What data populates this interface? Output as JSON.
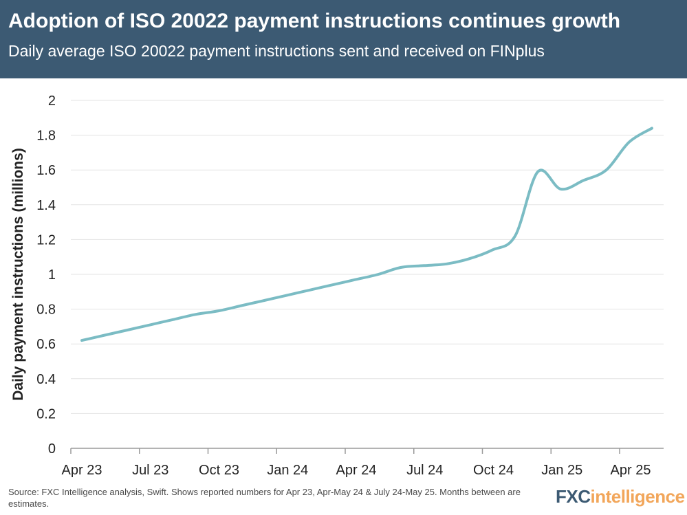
{
  "header": {
    "title": "Adoption of ISO 20022 payment instructions continues growth",
    "subtitle": "Daily average ISO 20022 payment instructions sent and received on FINplus"
  },
  "footer": {
    "source": "Source: FXC Intelligence analysis, Swift. Shows reported numbers for Apr 23, Apr-May 24 & July 24-May 25. Months between are estimates."
  },
  "logo": {
    "part1": "FXC",
    "part2": "intelligence"
  },
  "colors": {
    "header_bg": "#3c5a73",
    "line": "#7bbcc4",
    "grid": "#e3e3e3",
    "logo_accent": "#f2a65a"
  },
  "chart_data": {
    "type": "line",
    "title": "Adoption of ISO 20022 payment instructions continues growth",
    "subtitle": "Daily average ISO 20022 payment instructions sent and received on FINplus",
    "ylabel": "Daily payment instructions (millions)",
    "ylim": [
      0,
      2
    ],
    "yticks": [
      "0",
      "0.2",
      "0.4",
      "0.6",
      "0.8",
      "1",
      "1.2",
      "1.4",
      "1.6",
      "1.8",
      "2"
    ],
    "xtick_labels": [
      "Apr 23",
      "Jul 23",
      "Oct 23",
      "Jan 24",
      "Apr 24",
      "Jul 24",
      "Oct 24",
      "Jan 25",
      "Apr 25"
    ],
    "grid": true,
    "x": [
      "Apr 23",
      "May 23",
      "Jun 23",
      "Jul 23",
      "Aug 23",
      "Sep 23",
      "Oct 23",
      "Nov 23",
      "Dec 23",
      "Jan 24",
      "Feb 24",
      "Mar 24",
      "Apr 24",
      "May 24",
      "Jun 24",
      "Jul 24",
      "Aug 24",
      "Sep 24",
      "Oct 24",
      "Nov 24",
      "Dec 24",
      "Jan 25",
      "Feb 25",
      "Mar 25",
      "Apr 25",
      "May 25"
    ],
    "series": [
      {
        "values": [
          0.62,
          0.65,
          0.68,
          0.71,
          0.74,
          0.77,
          0.79,
          0.82,
          0.85,
          0.88,
          0.91,
          0.94,
          0.97,
          1.0,
          1.04,
          1.05,
          1.06,
          1.09,
          1.14,
          1.22,
          1.59,
          1.49,
          1.54,
          1.6,
          1.76,
          1.84
        ]
      }
    ]
  }
}
